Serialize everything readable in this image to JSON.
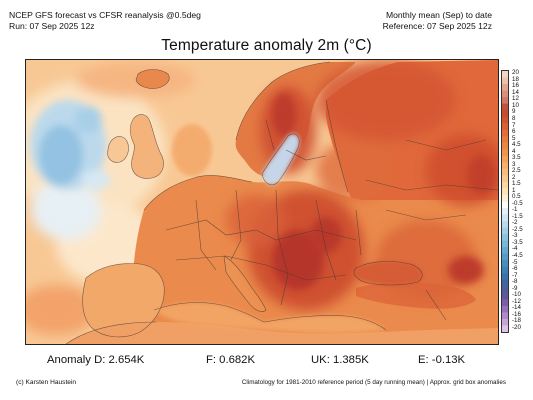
{
  "header": {
    "line1_left": "NCEP GFS forecast vs CFSR reanalysis @0.5deg",
    "line2_left": "Run: 07 Sep 2025 12z",
    "line1_right": "Monthly mean (Sep) to date",
    "line2_right": "Reference: 07 Sep 2025 12z"
  },
  "title": "Temperature anomaly 2m (°C)",
  "colorbar": {
    "ticks": [
      "20",
      "18",
      "16",
      "14",
      "12",
      "10",
      "9",
      "8",
      "7",
      "6",
      "5",
      "4.5",
      "4",
      "3.5",
      "3",
      "2.5",
      "2",
      "1.5",
      "1",
      "0.5",
      "-0.5",
      "-1",
      "-1.5",
      "-2",
      "-2.5",
      "-3",
      "-3.5",
      "-4",
      "-4.5",
      "-5",
      "-6",
      "-7",
      "-8",
      "-9",
      "-10",
      "-12",
      "-14",
      "-16",
      "-18",
      "-20"
    ],
    "colors": [
      "#f2d5c4",
      "#ecc2ae",
      "#e2a690",
      "#d98f7c",
      "#cf7a66",
      "#c1533a",
      "#c94a2e",
      "#d2542f",
      "#db6034",
      "#e26e39",
      "#e87b3e",
      "#ec8744",
      "#ef944d",
      "#f2a25a",
      "#f5b06b",
      "#f7bd7d",
      "#f9ca90",
      "#fbd7a4",
      "#fce3b8",
      "#fdefd2",
      "#ffffff",
      "#e6f1f7",
      "#d0e6f1",
      "#b9dbec",
      "#a2cfe6",
      "#8bc3df",
      "#78b7d8",
      "#66a9cf",
      "#579bc5",
      "#4a8dbb",
      "#4180b2",
      "#3a72a9",
      "#3f679f",
      "#4e5f98",
      "#63579a",
      "#7a5fa6",
      "#9573b8",
      "#ae8ac8",
      "#c7a4d7",
      "#dcc2e4"
    ]
  },
  "stats": {
    "anomaly_d": "Anomaly D: 2.654K",
    "f": "F: 0.682K",
    "uk": "UK: 1.385K",
    "e": "E: -0.13K"
  },
  "footer": {
    "left": "(c) Karsten Haustein",
    "right": "Climatology for 1981-2010 reference period (5 day running mean) | Approx. grid box anomalies"
  },
  "map_colors": {
    "ocean_warm": "#f7c08c",
    "ocean_pale": "#fbe1bd",
    "cold_blue": "#9ec9e6",
    "cold_light": "#cfe4f2",
    "land_warm": "#ef9a5a",
    "land_hot": "#e06a3c",
    "land_hotter": "#d2502f",
    "land_hottest": "#bf3a2a",
    "border": "#4a3a33"
  }
}
